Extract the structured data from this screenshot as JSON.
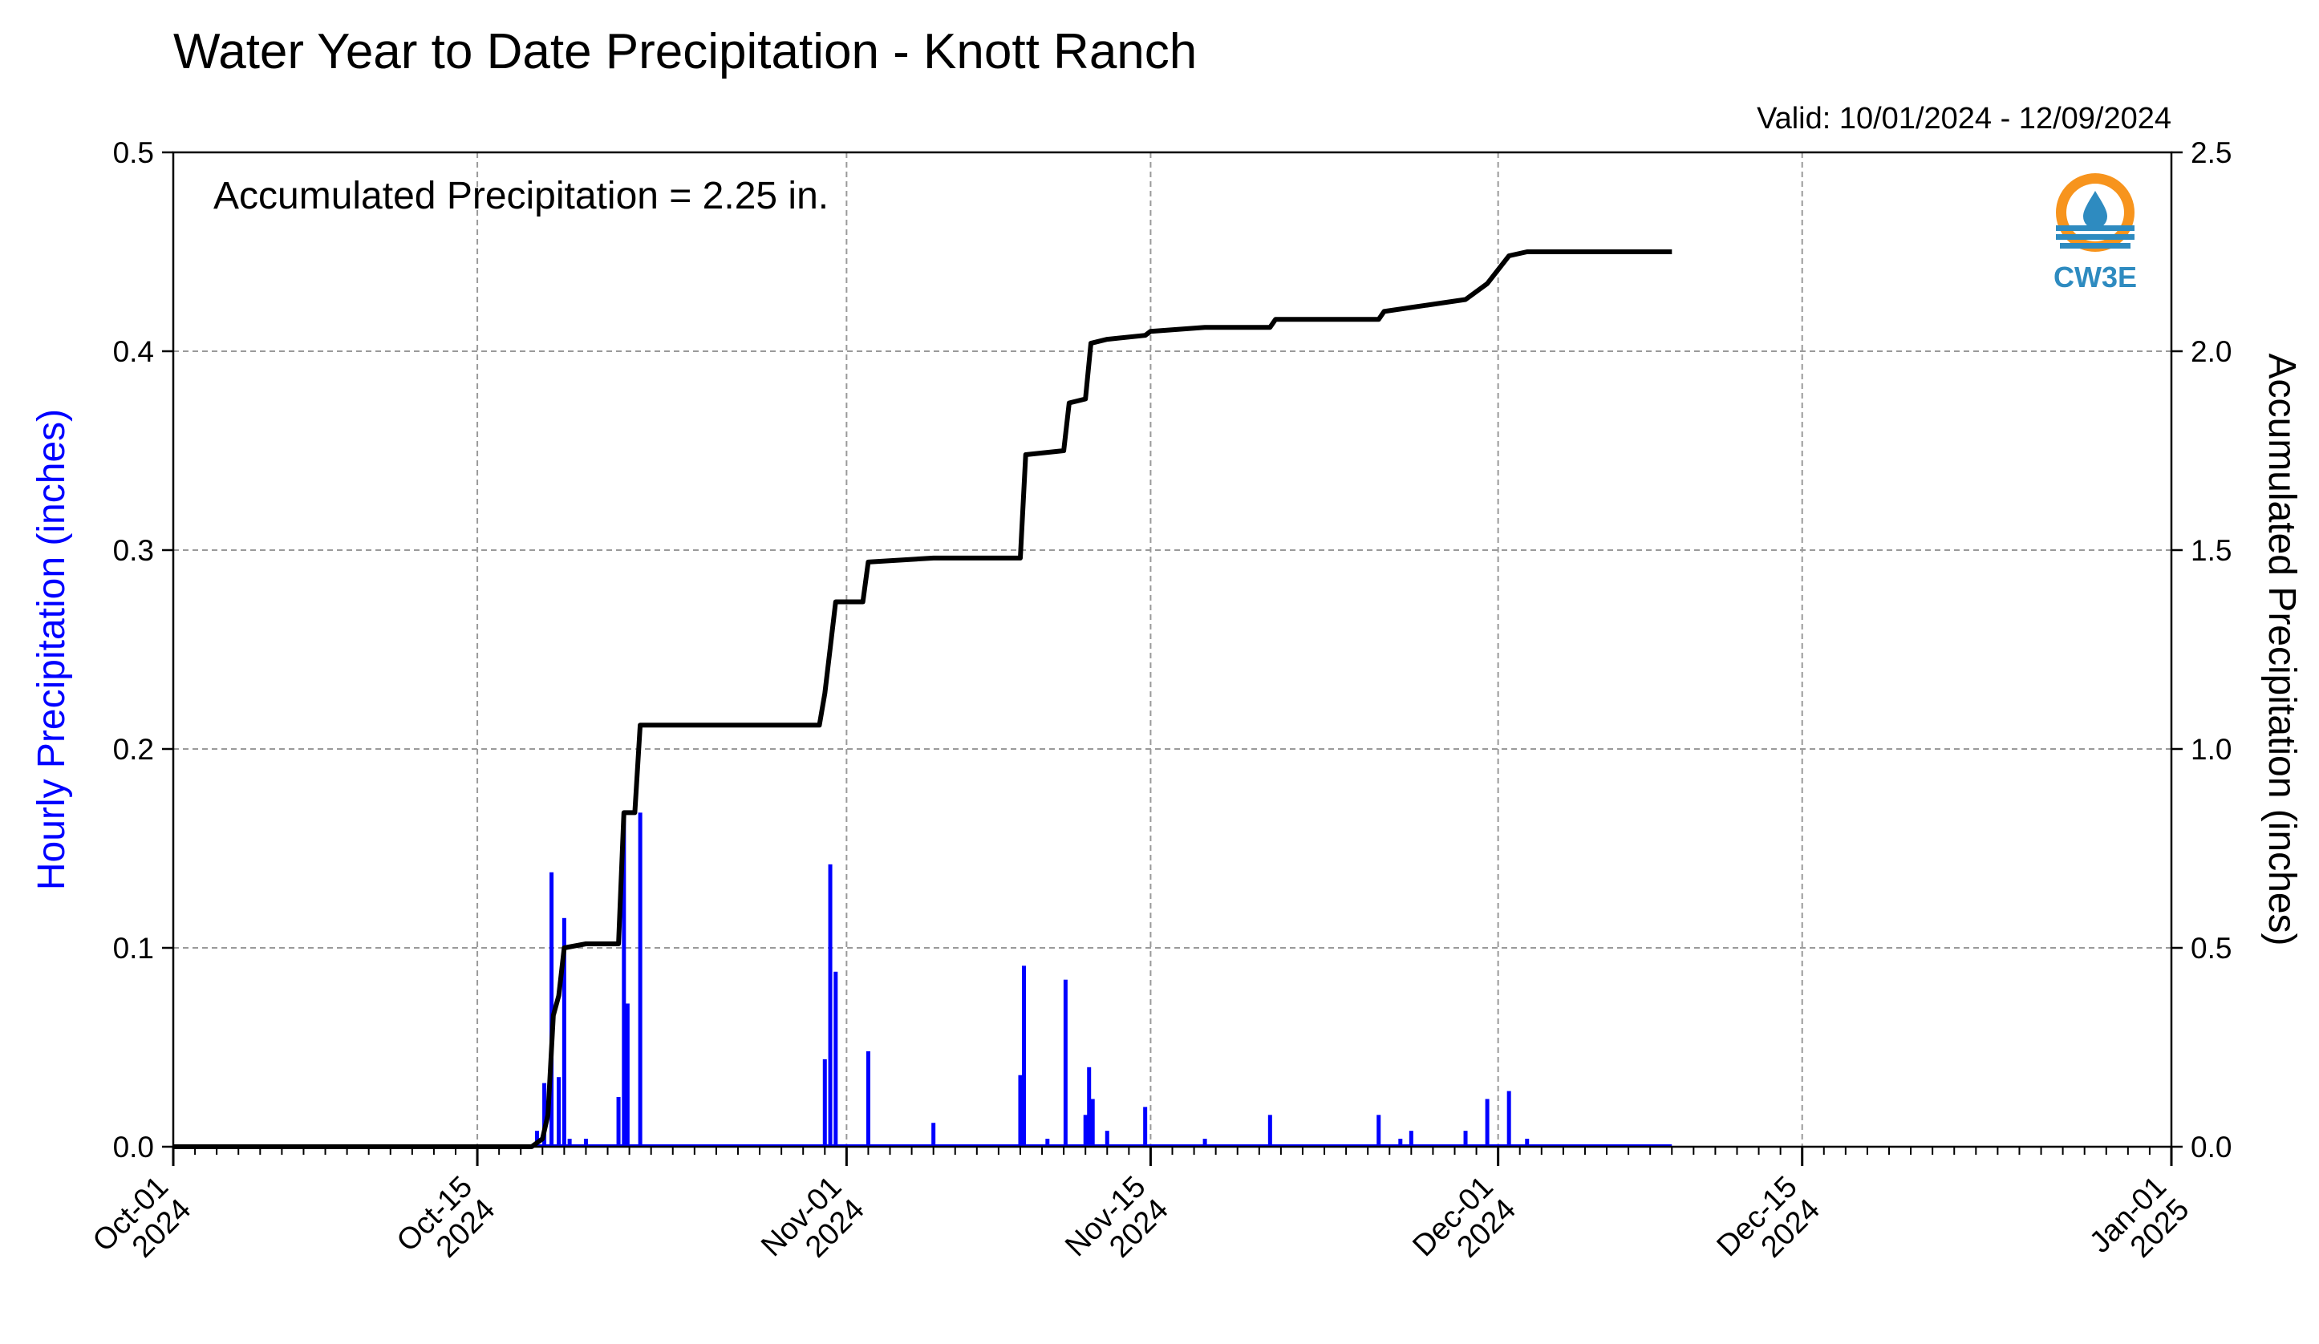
{
  "chart_data": {
    "type": "bar+line",
    "title": "Water Year to Date Precipitation - Knott Ranch",
    "valid_text": "Valid: 10/01/2024 - 12/09/2024",
    "annotation": "Accumulated Precipitation = 2.25 in.",
    "logo_text": "CW3E",
    "ylabel_left": "Hourly Precipitation (inches)",
    "ylabel_right": "Accumulated Precipitation (inches)",
    "ylim_left": [
      0,
      0.5
    ],
    "ylim_right": [
      0,
      2.5
    ],
    "xlim": [
      "2024-10-01",
      "2025-01-01"
    ],
    "grid": true,
    "colors": {
      "hourly": "#0000ff",
      "accumulated": "#000000",
      "grid": "#9a9a9a",
      "logo_orange": "#f7941d",
      "logo_blue": "#2e8bc0"
    },
    "x_ticks": [
      {
        "date": "2024-10-01",
        "line1": "Oct-01",
        "line2": "2024"
      },
      {
        "date": "2024-10-15",
        "line1": "Oct-15",
        "line2": "2024"
      },
      {
        "date": "2024-11-01",
        "line1": "Nov-01",
        "line2": "2024"
      },
      {
        "date": "2024-11-15",
        "line1": "Nov-15",
        "line2": "2024"
      },
      {
        "date": "2024-12-01",
        "line1": "Dec-01",
        "line2": "2024"
      },
      {
        "date": "2024-12-15",
        "line1": "Dec-15",
        "line2": "2024"
      },
      {
        "date": "2025-01-01",
        "line1": "Jan-01",
        "line2": "2025"
      }
    ],
    "y_ticks_left": [
      "0.0",
      "0.1",
      "0.2",
      "0.3",
      "0.4",
      "0.5"
    ],
    "y_ticks_right": [
      "0.0",
      "0.5",
      "1.0",
      "1.5",
      "2.0",
      "2.5"
    ],
    "series": [
      {
        "name": "Hourly Precipitation",
        "kind": "bar",
        "axis": "left",
        "points": [
          [
            "2024-10-17 18:00",
            0.008
          ],
          [
            "2024-10-18 02:00",
            0.032
          ],
          [
            "2024-10-18 10:00",
            0.138
          ],
          [
            "2024-10-18 18:00",
            0.035
          ],
          [
            "2024-10-19 00:00",
            0.115
          ],
          [
            "2024-10-19 06:00",
            0.004
          ],
          [
            "2024-10-20 00:00",
            0.004
          ],
          [
            "2024-10-21 12:00",
            0.025
          ],
          [
            "2024-10-21 18:00",
            0.168
          ],
          [
            "2024-10-21 22:00",
            0.072
          ],
          [
            "2024-10-22 12:00",
            0.168
          ],
          [
            "2024-10-31 00:00",
            0.044
          ],
          [
            "2024-10-31 06:00",
            0.142
          ],
          [
            "2024-10-31 12:00",
            0.088
          ],
          [
            "2024-11-02 00:00",
            0.048
          ],
          [
            "2024-11-05 00:00",
            0.012
          ],
          [
            "2024-11-09 00:00",
            0.036
          ],
          [
            "2024-11-09 04:00",
            0.091
          ],
          [
            "2024-11-10 06:00",
            0.004
          ],
          [
            "2024-11-11 02:00",
            0.084
          ],
          [
            "2024-11-12 00:00",
            0.016
          ],
          [
            "2024-11-12 04:00",
            0.04
          ],
          [
            "2024-11-12 08:00",
            0.024
          ],
          [
            "2024-11-13 00:00",
            0.008
          ],
          [
            "2024-11-14 18:00",
            0.02
          ],
          [
            "2024-11-17 12:00",
            0.004
          ],
          [
            "2024-11-20 12:00",
            0.016
          ],
          [
            "2024-11-25 12:00",
            0.016
          ],
          [
            "2024-11-26 12:00",
            0.004
          ],
          [
            "2024-11-27 00:00",
            0.008
          ],
          [
            "2024-11-29 12:00",
            0.008
          ],
          [
            "2024-11-30 12:00",
            0.024
          ],
          [
            "2024-12-01 12:00",
            0.028
          ],
          [
            "2024-12-02 08:00",
            0.004
          ]
        ]
      },
      {
        "name": "Accumulated Precipitation",
        "kind": "line",
        "axis": "right",
        "points": [
          [
            "2024-10-01 00:00",
            0.0
          ],
          [
            "2024-10-17 12:00",
            0.0
          ],
          [
            "2024-10-18 00:00",
            0.02
          ],
          [
            "2024-10-18 06:00",
            0.08
          ],
          [
            "2024-10-18 12:00",
            0.33
          ],
          [
            "2024-10-18 18:00",
            0.38
          ],
          [
            "2024-10-19 00:00",
            0.5
          ],
          [
            "2024-10-20 00:00",
            0.51
          ],
          [
            "2024-10-21 12:00",
            0.51
          ],
          [
            "2024-10-21 18:00",
            0.84
          ],
          [
            "2024-10-22 06:00",
            0.84
          ],
          [
            "2024-10-22 12:00",
            1.06
          ],
          [
            "2024-10-30 18:00",
            1.06
          ],
          [
            "2024-10-31 00:00",
            1.14
          ],
          [
            "2024-10-31 12:00",
            1.37
          ],
          [
            "2024-11-01 18:00",
            1.37
          ],
          [
            "2024-11-02 00:00",
            1.47
          ],
          [
            "2024-11-05 00:00",
            1.48
          ],
          [
            "2024-11-09 00:00",
            1.48
          ],
          [
            "2024-11-09 06:00",
            1.74
          ],
          [
            "2024-11-11 00:00",
            1.75
          ],
          [
            "2024-11-11 06:00",
            1.87
          ],
          [
            "2024-11-12 00:00",
            1.88
          ],
          [
            "2024-11-12 06:00",
            2.02
          ],
          [
            "2024-11-13 00:00",
            2.03
          ],
          [
            "2024-11-14 18:00",
            2.04
          ],
          [
            "2024-11-15 00:00",
            2.05
          ],
          [
            "2024-11-17 12:00",
            2.06
          ],
          [
            "2024-11-20 12:00",
            2.06
          ],
          [
            "2024-11-20 18:00",
            2.08
          ],
          [
            "2024-11-25 12:00",
            2.08
          ],
          [
            "2024-11-25 18:00",
            2.1
          ],
          [
            "2024-11-27 00:00",
            2.11
          ],
          [
            "2024-11-29 12:00",
            2.13
          ],
          [
            "2024-11-30 12:00",
            2.17
          ],
          [
            "2024-12-01 12:00",
            2.24
          ],
          [
            "2024-12-02 08:00",
            2.25
          ],
          [
            "2024-12-09 00:00",
            2.25
          ]
        ]
      }
    ]
  }
}
